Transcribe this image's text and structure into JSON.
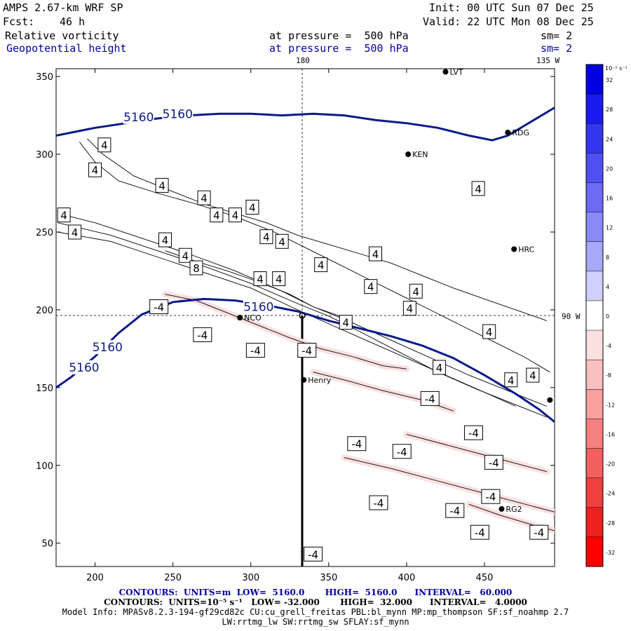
{
  "header": {
    "model": "AMPS 2.67-km WRF SP",
    "init": "Init: 00 UTC Sun 07 Dec 25",
    "fcst_label": "Fcst:",
    "fcst_value": "46 h",
    "valid": "Valid: 22 UTC Mon 08 Dec 25",
    "field1_name": "Relative vorticity",
    "field1_pressure": "at pressure =  500 hPa",
    "field1_sm": "sm= 2",
    "field2_name": "Geopotential height",
    "field2_pressure": "at pressure =  500 hPa",
    "field2_sm": "sm= 2"
  },
  "map_labels": {
    "lon_180": "180",
    "lon_135": "135 W",
    "lon_90": "90 W"
  },
  "stations": [
    {
      "name": "LVT",
      "x": 425,
      "y": 353
    },
    {
      "name": "RDG",
      "x": 465,
      "y": 314
    },
    {
      "name": "KEN",
      "x": 401,
      "y": 300
    },
    {
      "name": "HRC",
      "x": 469,
      "y": 239
    },
    {
      "name": "NCO",
      "x": 293,
      "y": 195
    },
    {
      "name": "Henry",
      "x": 334,
      "y": 155
    },
    {
      "name": "RG2",
      "x": 461,
      "y": 72
    },
    {
      "name": "",
      "x": 492,
      "y": 142
    }
  ],
  "footer": {
    "line1": "CONTOURS:  UNITS=m  LOW=  5160.0       HIGH=  5160.0      INTERVAL=   60.000",
    "line2": "CONTOURS:  UNITS=10⁻⁵ s⁻¹   LOW= -32.000       HIGH=  32.000      INTERVAL=   4.0000",
    "line3": "Model Info: MPASv8.2.3-194-gf29cd82c CU:cu_grell_freitas PBL:bl_mynn MP:mp_thompson SF:sf_noahmp 2.7",
    "line4": "LW:rrtmg_lw SW:rrtmg_sw SFLAY:sf_mynn"
  },
  "colorbar": {
    "unit_label": "10⁻⁵ s⁻¹",
    "ticks": [
      "32",
      "28",
      "24",
      "20",
      "16",
      "12",
      "8",
      "4",
      "0",
      "-4",
      "-8",
      "-12",
      "-16",
      "-20",
      "-24",
      "-28",
      "-32"
    ],
    "colors": [
      "#0000e0",
      "#1a1aee",
      "#3535f0",
      "#5050f2",
      "#6b6bf4",
      "#8a8af6",
      "#a8a8f8",
      "#cfcffb",
      "#ffffff",
      "#fbe0e0",
      "#f8c0c0",
      "#f6a0a0",
      "#f48080",
      "#f26060",
      "#f04040",
      "#ee2020",
      "#ff0000"
    ]
  },
  "chart_data": {
    "type": "contour",
    "xlim": [
      175,
      495
    ],
    "ylim": [
      35,
      355
    ],
    "x_ticks": [
      200,
      250,
      300,
      350,
      400,
      450
    ],
    "y_ticks": [
      50,
      100,
      150,
      200,
      250,
      300,
      350
    ],
    "height_contour_label": "5160",
    "height_contours": [
      {
        "label_positions": [
          [
            228,
            324
          ],
          [
            253,
            326
          ]
        ],
        "points": [
          [
            175,
            312
          ],
          [
            200,
            317
          ],
          [
            220,
            320
          ],
          [
            240,
            323
          ],
          [
            260,
            325
          ],
          [
            280,
            326
          ],
          [
            300,
            326
          ],
          [
            320,
            325
          ],
          [
            340,
            326
          ],
          [
            360,
            325
          ],
          [
            380,
            322
          ],
          [
            400,
            320
          ],
          [
            420,
            317
          ],
          [
            440,
            312
          ],
          [
            455,
            309
          ],
          [
            465,
            312
          ],
          [
            475,
            318
          ],
          [
            485,
            324
          ],
          [
            495,
            330
          ]
        ]
      },
      {
        "label_positions": [
          [
            305,
            202
          ],
          [
            208,
            176
          ],
          [
            193,
            163
          ]
        ],
        "points": [
          [
            175,
            150
          ],
          [
            185,
            157
          ],
          [
            200,
            170
          ],
          [
            215,
            185
          ],
          [
            230,
            197
          ],
          [
            250,
            205
          ],
          [
            270,
            207
          ],
          [
            290,
            206
          ],
          [
            310,
            203
          ],
          [
            330,
            199
          ],
          [
            350,
            193
          ],
          [
            370,
            188
          ],
          [
            390,
            183
          ],
          [
            410,
            177
          ],
          [
            430,
            169
          ],
          [
            450,
            158
          ],
          [
            470,
            146
          ],
          [
            485,
            136
          ],
          [
            495,
            128
          ]
        ]
      }
    ],
    "vorticity_contours": [
      {
        "level": 4,
        "points": [
          [
            176,
            262
          ],
          [
            200,
            256
          ],
          [
            230,
            246
          ],
          [
            260,
            236
          ],
          [
            290,
            225
          ],
          [
            320,
            212
          ],
          [
            340,
            202
          ],
          [
            360,
            194
          ],
          [
            380,
            185
          ],
          [
            400,
            176
          ],
          [
            420,
            167
          ],
          [
            440,
            158
          ],
          [
            460,
            150
          ],
          [
            475,
            144
          ],
          [
            490,
            138
          ]
        ]
      },
      {
        "level": 4,
        "points": [
          [
            176,
            256
          ],
          [
            210,
            248
          ],
          [
            240,
            238
          ],
          [
            270,
            228
          ],
          [
            300,
            217
          ],
          [
            330,
            204
          ],
          [
            350,
            196
          ],
          [
            370,
            186
          ],
          [
            395,
            173
          ],
          [
            420,
            160
          ],
          [
            445,
            149
          ],
          [
            470,
            139
          ],
          [
            490,
            131
          ]
        ]
      },
      {
        "level": 4,
        "points": [
          [
            176,
            250
          ],
          [
            210,
            244
          ],
          [
            240,
            234
          ],
          [
            270,
            224
          ],
          [
            300,
            214
          ],
          [
            330,
            200
          ],
          [
            350,
            191
          ],
          [
            375,
            180
          ],
          [
            400,
            169
          ],
          [
            425,
            158
          ],
          [
            450,
            147
          ],
          [
            470,
            138
          ]
        ]
      },
      {
        "level": 8,
        "points": [
          [
            245,
            238
          ],
          [
            265,
            231
          ],
          [
            285,
            225
          ],
          [
            305,
            218
          ],
          [
            325,
            210
          ],
          [
            340,
            202
          ],
          [
            360,
            195
          ]
        ]
      },
      {
        "level": 4,
        "points": [
          [
            195,
            310
          ],
          [
            205,
            300
          ],
          [
            225,
            286
          ],
          [
            250,
            276
          ],
          [
            270,
            268
          ],
          [
            290,
            262
          ],
          [
            310,
            256
          ],
          [
            330,
            248
          ],
          [
            350,
            242
          ],
          [
            370,
            236
          ],
          [
            390,
            230
          ],
          [
            410,
            222
          ],
          [
            430,
            214
          ],
          [
            450,
            207
          ],
          [
            470,
            200
          ],
          [
            490,
            193
          ]
        ]
      },
      {
        "level": 4,
        "points": [
          [
            190,
            308
          ],
          [
            200,
            295
          ],
          [
            215,
            283
          ],
          [
            240,
            275
          ],
          [
            265,
            268
          ],
          [
            290,
            260
          ],
          [
            315,
            250
          ],
          [
            335,
            240
          ],
          [
            355,
            230
          ],
          [
            375,
            220
          ],
          [
            395,
            210
          ],
          [
            415,
            200
          ],
          [
            435,
            190
          ],
          [
            455,
            180
          ],
          [
            475,
            170
          ],
          [
            492,
            160
          ]
        ]
      },
      {
        "level": -4,
        "points": [
          [
            245,
            210
          ],
          [
            265,
            206
          ],
          [
            285,
            198
          ],
          [
            305,
            190
          ],
          [
            325,
            182
          ],
          [
            345,
            175
          ],
          [
            365,
            170
          ],
          [
            385,
            164
          ],
          [
            400,
            162
          ]
        ]
      },
      {
        "level": -4,
        "points": [
          [
            340,
            160
          ],
          [
            360,
            155
          ],
          [
            385,
            148
          ],
          [
            410,
            142
          ],
          [
            430,
            135
          ]
        ]
      },
      {
        "level": -4,
        "points": [
          [
            400,
            120
          ],
          [
            430,
            112
          ],
          [
            460,
            104
          ],
          [
            490,
            96
          ]
        ]
      },
      {
        "level": -4,
        "points": [
          [
            360,
            105
          ],
          [
            390,
            98
          ],
          [
            420,
            90
          ],
          [
            450,
            82
          ],
          [
            480,
            74
          ],
          [
            495,
            70
          ]
        ]
      },
      {
        "level": -4,
        "points": [
          [
            440,
            75
          ],
          [
            460,
            68
          ],
          [
            480,
            62
          ],
          [
            495,
            58
          ]
        ]
      }
    ],
    "vorticity_labels": [
      {
        "text": "4",
        "x": 206,
        "y": 306
      },
      {
        "text": "4",
        "x": 200,
        "y": 290
      },
      {
        "text": "4",
        "x": 243,
        "y": 280
      },
      {
        "text": "4",
        "x": 270,
        "y": 272
      },
      {
        "text": "4",
        "x": 301,
        "y": 266
      },
      {
        "text": "4",
        "x": 180,
        "y": 261
      },
      {
        "text": "4",
        "x": 187,
        "y": 250
      },
      {
        "text": "4",
        "x": 245,
        "y": 245
      },
      {
        "text": "4",
        "x": 278,
        "y": 261
      },
      {
        "text": "4",
        "x": 290,
        "y": 261
      },
      {
        "text": "4",
        "x": 310,
        "y": 247
      },
      {
        "text": "4",
        "x": 320,
        "y": 244
      },
      {
        "text": "4",
        "x": 258,
        "y": 235
      },
      {
        "text": "8",
        "x": 265,
        "y": 227
      },
      {
        "text": "4",
        "x": 306,
        "y": 220
      },
      {
        "text": "4",
        "x": 318,
        "y": 220
      },
      {
        "text": "4",
        "x": 345,
        "y": 229
      },
      {
        "text": "4",
        "x": 380,
        "y": 236
      },
      {
        "text": "4",
        "x": 377,
        "y": 215
      },
      {
        "text": "4",
        "x": 406,
        "y": 212
      },
      {
        "text": "4",
        "x": 402,
        "y": 201
      },
      {
        "text": "4",
        "x": 361,
        "y": 192
      },
      {
        "text": "4",
        "x": 453,
        "y": 186
      },
      {
        "text": "4",
        "x": 421,
        "y": 163
      },
      {
        "text": "4",
        "x": 467,
        "y": 155
      },
      {
        "text": "4",
        "x": 481,
        "y": 158
      },
      {
        "text": "4",
        "x": 446,
        "y": 278
      },
      {
        "text": "-4",
        "x": 241,
        "y": 202
      },
      {
        "text": "-4",
        "x": 269,
        "y": 184
      },
      {
        "text": "-4",
        "x": 303,
        "y": 174
      },
      {
        "text": "-4",
        "x": 415,
        "y": 143
      },
      {
        "text": "-4",
        "x": 443,
        "y": 121
      },
      {
        "text": "-4",
        "x": 368,
        "y": 114
      },
      {
        "text": "-4",
        "x": 397,
        "y": 109
      },
      {
        "text": "-4",
        "x": 456,
        "y": 102
      },
      {
        "text": "-4",
        "x": 454,
        "y": 80
      },
      {
        "text": "-4",
        "x": 382,
        "y": 76
      },
      {
        "text": "-4",
        "x": 431,
        "y": 71
      },
      {
        "text": "-4",
        "x": 447,
        "y": 57
      },
      {
        "text": "-4",
        "x": 485,
        "y": 57
      },
      {
        "text": "-4",
        "x": 340,
        "y": 43
      },
      {
        "text": "-4",
        "x": 336,
        "y": 174
      }
    ],
    "colorbar_range": [
      -32,
      32
    ]
  }
}
